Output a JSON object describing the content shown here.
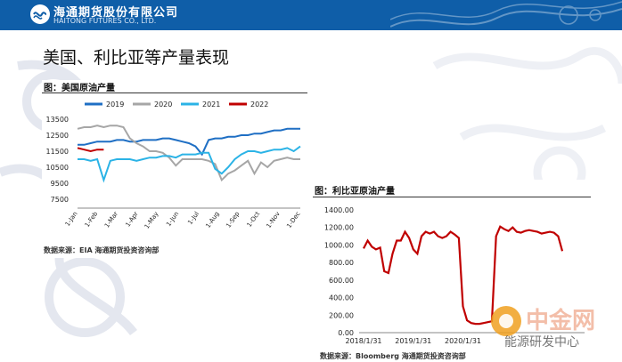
{
  "header": {
    "company_cn": "海通期货股份有限公司",
    "company_en": "HAITONG FUTURES CO., LTD."
  },
  "slide_title": "美国、利比亚等产量表现",
  "colors": {
    "header": "#0f5ea8",
    "s2019": "#1f6fc4",
    "s2020": "#a6a6a6",
    "s2021": "#2bb3e6",
    "s2022": "#c00000",
    "libya": "#c00000"
  },
  "watermark": {
    "main": "中金网",
    "sub": "能源研发中心"
  },
  "chart_data": [
    {
      "type": "line",
      "title": "图：美国原油产量",
      "source": "数据来源：EIA    海通期货投资咨询部",
      "ylim": [
        7500,
        13500
      ],
      "yticks": [
        7500,
        9500,
        10500,
        11500,
        12500,
        13500
      ],
      "yticks_show": [
        "13500",
        "12500",
        "11500",
        "10500",
        "9500",
        "7500"
      ],
      "x_labels": [
        "1-Jan",
        "1-Feb",
        "1-Mar",
        "1-Apr",
        "1-May",
        "1-Jun",
        "1-Jul",
        "1-Aug",
        "1-Sep",
        "1-Oct",
        "1-Nov",
        "1-Dec"
      ],
      "series": [
        {
          "name": "2019",
          "values": [
            11900,
            11900,
            12000,
            12100,
            12100,
            12100,
            12200,
            12200,
            12100,
            12100,
            12200,
            12200,
            12200,
            12300,
            12300,
            12200,
            12100,
            12000,
            11800,
            11300,
            12200,
            12300,
            12300,
            12400,
            12400,
            12500,
            12500,
            12600,
            12600,
            12700,
            12800,
            12800,
            12900,
            12900,
            12900
          ]
        },
        {
          "name": "2020",
          "values": [
            12900,
            13000,
            13000,
            13100,
            13000,
            13100,
            13100,
            13000,
            12300,
            12000,
            11800,
            11500,
            11500,
            11400,
            11100,
            10600,
            11000,
            11000,
            11000,
            11000,
            10900,
            10700,
            9700,
            10100,
            10300,
            10600,
            10900,
            10100,
            10800,
            10500,
            10900,
            11000,
            11100,
            11000,
            11000
          ]
        },
        {
          "name": "2021",
          "values": [
            11000,
            11000,
            10900,
            11000,
            9700,
            10900,
            11000,
            11000,
            11000,
            10900,
            11000,
            11100,
            11100,
            11200,
            11200,
            11100,
            11300,
            11300,
            11300,
            11400,
            11400,
            10400,
            10100,
            10500,
            11000,
            11300,
            11500,
            11500,
            11400,
            11500,
            11600,
            11600,
            11700,
            11500,
            11800
          ]
        },
        {
          "name": "2022",
          "values": [
            11700,
            11600,
            11500,
            11600,
            11600
          ]
        }
      ]
    },
    {
      "type": "line",
      "title": "图：利比亚原油产量",
      "source": "数据来源：Bloomberg    海通期货投资咨询部",
      "ylim": [
        0,
        1400
      ],
      "yticks": [
        0,
        200,
        400,
        600,
        800,
        1000,
        1200,
        1400
      ],
      "yticks_show": [
        "1400.00",
        "1200.00",
        "1000.00",
        "800.00",
        "600.00",
        "400.00",
        "200.00",
        "0.00"
      ],
      "x_labels": [
        "2018/1/31",
        "2019/1/31",
        "2020/1/31"
      ],
      "series": [
        {
          "name": "利比亚",
          "values": [
            960,
            1050,
            980,
            950,
            970,
            700,
            680,
            900,
            1050,
            1050,
            1150,
            1080,
            950,
            900,
            1100,
            1150,
            1130,
            1150,
            1100,
            1080,
            1100,
            1150,
            1120,
            1080,
            300,
            140,
            110,
            100,
            100,
            110,
            120,
            130,
            1100,
            1210,
            1180,
            1160,
            1200,
            1150,
            1140,
            1160,
            1170,
            1160,
            1150,
            1130,
            1140,
            1150,
            1140,
            1100,
            930
          ]
        }
      ]
    }
  ]
}
